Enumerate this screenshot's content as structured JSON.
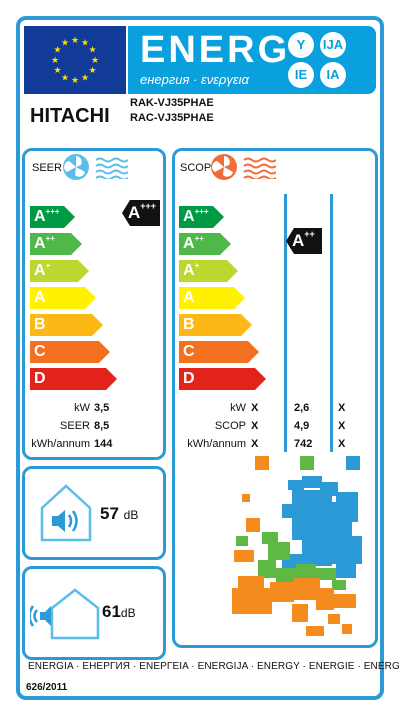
{
  "header": {
    "energy_word": "ENERG",
    "energy_sub": "енергия · ενεργεια",
    "languages": [
      "Y",
      "IJA",
      "IE",
      "IA"
    ]
  },
  "brand": "HITACHI",
  "models": [
    "RAK-VJ35PHAE",
    "RAC-VJ35PHAE"
  ],
  "classes": [
    {
      "letter": "A",
      "sup": "+++",
      "color": "#009a44"
    },
    {
      "letter": "A",
      "sup": "++",
      "color": "#50b848"
    },
    {
      "letter": "A",
      "sup": "+",
      "color": "#bed630"
    },
    {
      "letter": "A",
      "sup": "",
      "color": "#fff100"
    },
    {
      "letter": "B",
      "sup": "",
      "color": "#fcb814"
    },
    {
      "letter": "C",
      "sup": "",
      "color": "#f37021"
    },
    {
      "letter": "D",
      "sup": "",
      "color": "#e2231a"
    }
  ],
  "seer": {
    "title": "SEER",
    "rating": {
      "letter": "A",
      "sup": "+++"
    },
    "metrics": [
      {
        "label": "kW",
        "value": "3,5"
      },
      {
        "label": "SEER",
        "value": "8,5"
      },
      {
        "label": "kWh/annum",
        "value": "144"
      }
    ]
  },
  "scop": {
    "title": "SCOP",
    "rating": {
      "letter": "A",
      "sup": "++"
    },
    "metrics": [
      {
        "label": "kW",
        "values": [
          "X",
          "2,6",
          "X"
        ]
      },
      {
        "label": "SCOP",
        "values": [
          "X",
          "4,9",
          "X"
        ]
      },
      {
        "label": "kWh/annum",
        "values": [
          "X",
          "742",
          "X"
        ]
      }
    ],
    "zone_colors": [
      "#f38b1f",
      "#5fb843",
      "#2b9ad6"
    ]
  },
  "noise": {
    "indoor": {
      "value": "57",
      "unit": "dB"
    },
    "outdoor": {
      "value": "61",
      "unit": "dB"
    }
  },
  "footer": {
    "energy_line": "ENERGIA · ЕНЕРГИЯ · ΕΝΕΡΓΕΙΑ · ENERGIJA · ENERGY · ENERGIE · ENERGI",
    "regulation": "626/2011"
  }
}
